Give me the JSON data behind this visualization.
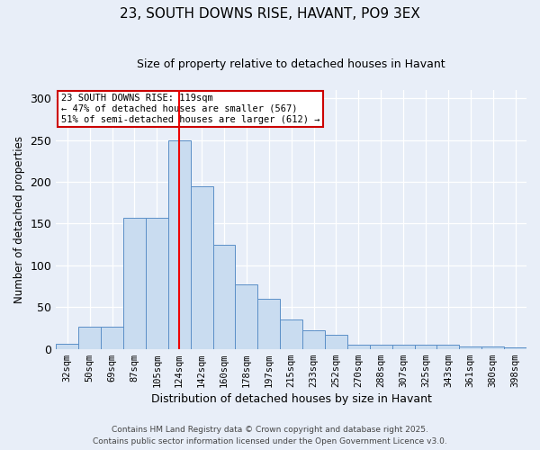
{
  "title_line1": "23, SOUTH DOWNS RISE, HAVANT, PO9 3EX",
  "title_line2": "Size of property relative to detached houses in Havant",
  "xlabel": "Distribution of detached houses by size in Havant",
  "ylabel": "Number of detached properties",
  "bar_labels": [
    "32sqm",
    "50sqm",
    "69sqm",
    "87sqm",
    "105sqm",
    "124sqm",
    "142sqm",
    "160sqm",
    "178sqm",
    "197sqm",
    "215sqm",
    "233sqm",
    "252sqm",
    "270sqm",
    "288sqm",
    "307sqm",
    "325sqm",
    "343sqm",
    "361sqm",
    "380sqm",
    "398sqm"
  ],
  "bar_values": [
    6,
    27,
    27,
    157,
    157,
    250,
    195,
    125,
    77,
    60,
    35,
    22,
    17,
    5,
    5,
    5,
    5,
    5,
    3,
    3,
    2
  ],
  "bar_color": "#c9dcf0",
  "bar_edge_color": "#5b8fc7",
  "red_line_index": 5,
  "red_line_color": "#ee0000",
  "ylim": [
    0,
    310
  ],
  "yticks": [
    0,
    50,
    100,
    150,
    200,
    250,
    300
  ],
  "annotation_text": "23 SOUTH DOWNS RISE: 119sqm\n← 47% of detached houses are smaller (567)\n51% of semi-detached houses are larger (612) →",
  "annotation_box_facecolor": "#ffffff",
  "annotation_box_edgecolor": "#cc0000",
  "footer_text": "Contains HM Land Registry data © Crown copyright and database right 2025.\nContains public sector information licensed under the Open Government Licence v3.0.",
  "bg_color": "#e8eef8",
  "plot_bg_color": "#e8eef8",
  "footer_color": "#444444"
}
